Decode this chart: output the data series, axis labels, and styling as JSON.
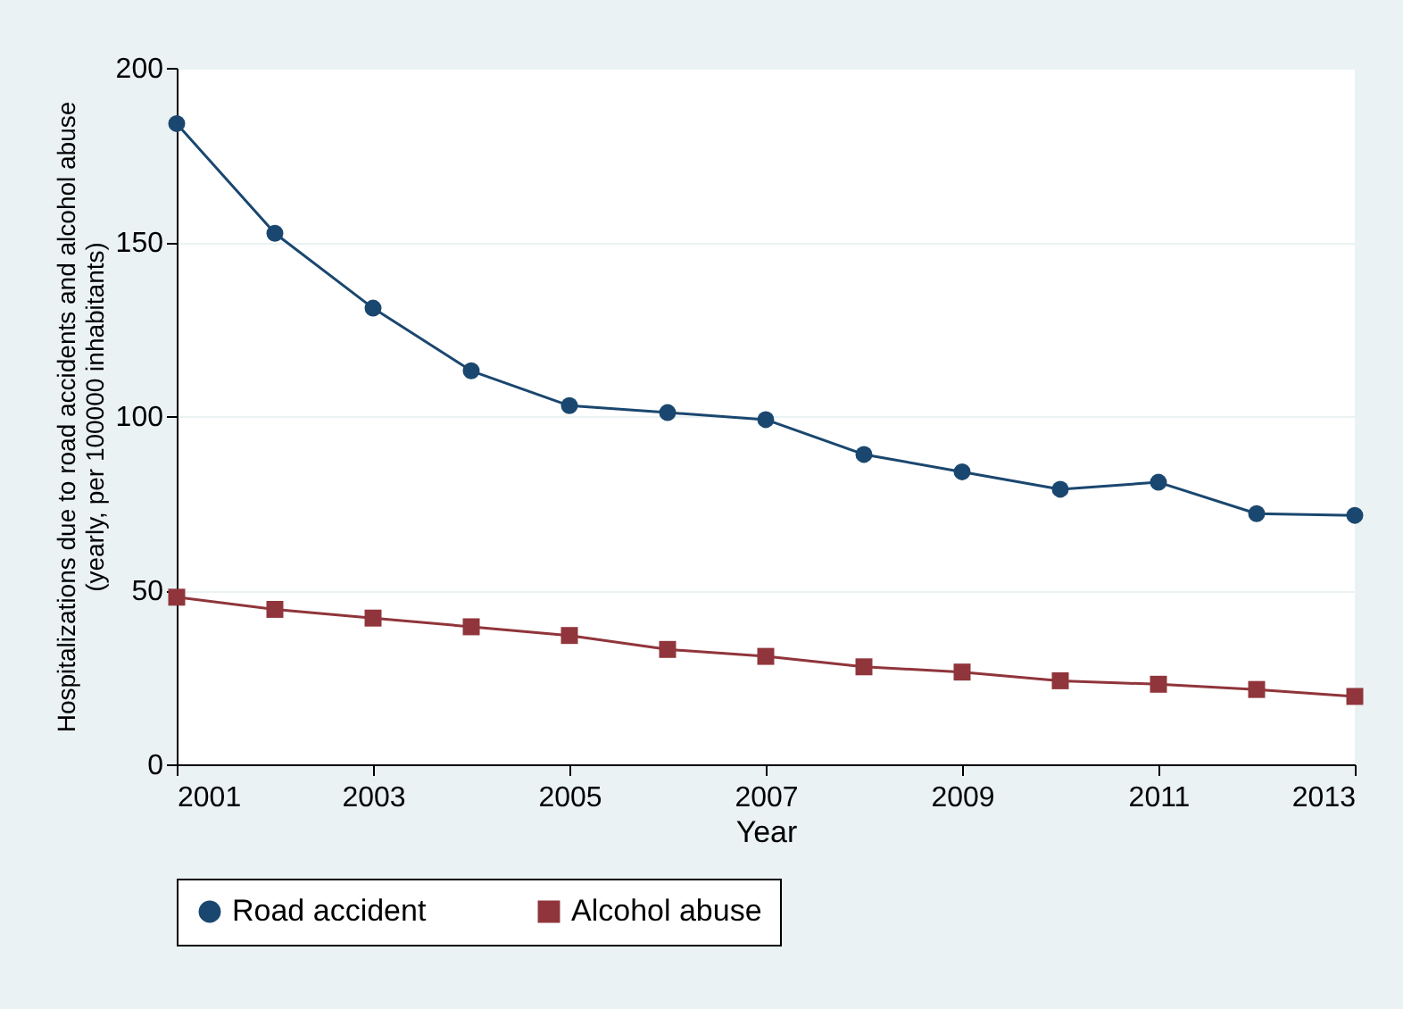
{
  "chart_data": {
    "type": "line",
    "xlabel": "Year",
    "ylabel": "Hospitalizations due to road accidents and alcohol abuse\n(yearly, per 100000 inhabitants)",
    "x": [
      2001,
      2002,
      2003,
      2004,
      2005,
      2006,
      2007,
      2008,
      2009,
      2010,
      2011,
      2012,
      2013
    ],
    "series": [
      {
        "name": "Road accident",
        "color": "#1a476f",
        "marker": "circle",
        "values": [
          184,
          152.5,
          131,
          113,
          103,
          101,
          99,
          89,
          84,
          79,
          81,
          72,
          71.5
        ]
      },
      {
        "name": "Alcohol abuse",
        "color": "#90353b",
        "marker": "square",
        "values": [
          48,
          44.5,
          42,
          39.5,
          37,
          33,
          31,
          28,
          26.5,
          24,
          23,
          21.5,
          19.5
        ]
      }
    ],
    "xlim": [
      2001,
      2013
    ],
    "xticks": [
      2001,
      2003,
      2005,
      2007,
      2009,
      2011,
      2013
    ],
    "ylim": [
      0,
      200
    ],
    "yticks": [
      0,
      50,
      100,
      150,
      200
    ],
    "grid": "y",
    "legend": "bottom",
    "line_style": "solid"
  }
}
